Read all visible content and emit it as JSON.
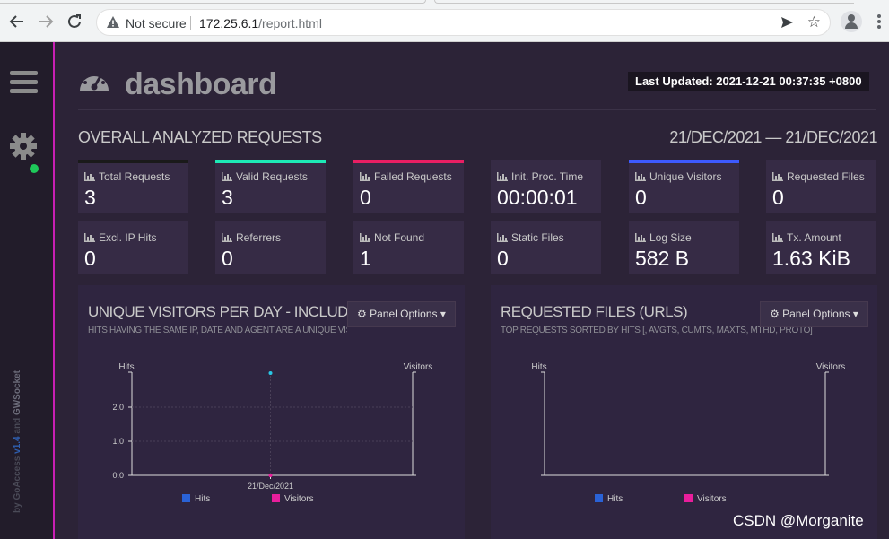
{
  "browser": {
    "security_label": "Not secure",
    "url_host": "172.25.6.1",
    "url_path": "/report.html"
  },
  "sidebar": {
    "credit_by": "by GoAccess ",
    "credit_version": "v1.4",
    "credit_and": " and ",
    "credit_gw": "GWSocket"
  },
  "header": {
    "title": "dashboard",
    "last_updated": "Last Updated: 2021-12-21 00:37:35 +0800"
  },
  "overview": {
    "heading": "OVERALL ANALYZED REQUESTS",
    "date_range": "21/DEC/2021 — 21/DEC/2021",
    "cards": [
      {
        "label": "Total Requests",
        "value": "3",
        "accent": "#1a1a1a"
      },
      {
        "label": "Valid Requests",
        "value": "3",
        "accent": "#1de9b6"
      },
      {
        "label": "Failed Requests",
        "value": "0",
        "accent": "#e91e63"
      },
      {
        "label": "Init. Proc. Time",
        "value": "00:00:01",
        "accent": ""
      },
      {
        "label": "Unique Visitors",
        "value": "0",
        "accent": "#3d5afe"
      },
      {
        "label": "Requested Files",
        "value": "0",
        "accent": ""
      },
      {
        "label": "Excl. IP Hits",
        "value": "0",
        "accent": ""
      },
      {
        "label": "Referrers",
        "value": "0",
        "accent": ""
      },
      {
        "label": "Not Found",
        "value": "1",
        "accent": ""
      },
      {
        "label": "Static Files",
        "value": "0",
        "accent": ""
      },
      {
        "label": "Log Size",
        "value": "582 B",
        "accent": ""
      },
      {
        "label": "Tx. Amount",
        "value": "1.63 KiB",
        "accent": ""
      }
    ]
  },
  "panels": [
    {
      "title": "UNIQUE VISITORS PER DAY - INCLUDING SPIDERS",
      "subtitle": "HITS HAVING THE SAME IP, DATE AND AGENT ARE A UNIQUE VISIT.",
      "options_label": "Panel Options"
    },
    {
      "title": "REQUESTED FILES (URLS)",
      "subtitle": "TOP REQUESTS SORTED BY HITS [, AVGTS, CUMTS, MAXTS, MTHD, PROTO]",
      "options_label": "Panel Options"
    }
  ],
  "chart_data": [
    {
      "type": "line",
      "ylabel_left": "Hits",
      "ylabel_right": "Visitors",
      "categories": [
        "21/Dec/2021"
      ],
      "series": [
        {
          "name": "Hits",
          "values": [
            3
          ],
          "color": "#2a62d6"
        },
        {
          "name": "Visitors",
          "values": [
            0
          ],
          "color": "#e91e9c"
        }
      ],
      "yticks": [
        "0.0",
        "1.0",
        "2.0"
      ],
      "ylim": [
        0,
        3
      ]
    },
    {
      "type": "bar",
      "ylabel_left": "Hits",
      "ylabel_right": "Visitors",
      "categories": [],
      "series": [
        {
          "name": "Hits",
          "values": [],
          "color": "#2a62d6"
        },
        {
          "name": "Visitors",
          "values": [],
          "color": "#e91e9c"
        }
      ]
    }
  ],
  "colors": {
    "hits_point": "#29c7e6",
    "visitors_point": "#e91e9c",
    "status_ok": "#1ec85a"
  },
  "watermark": "CSDN @Morganite"
}
